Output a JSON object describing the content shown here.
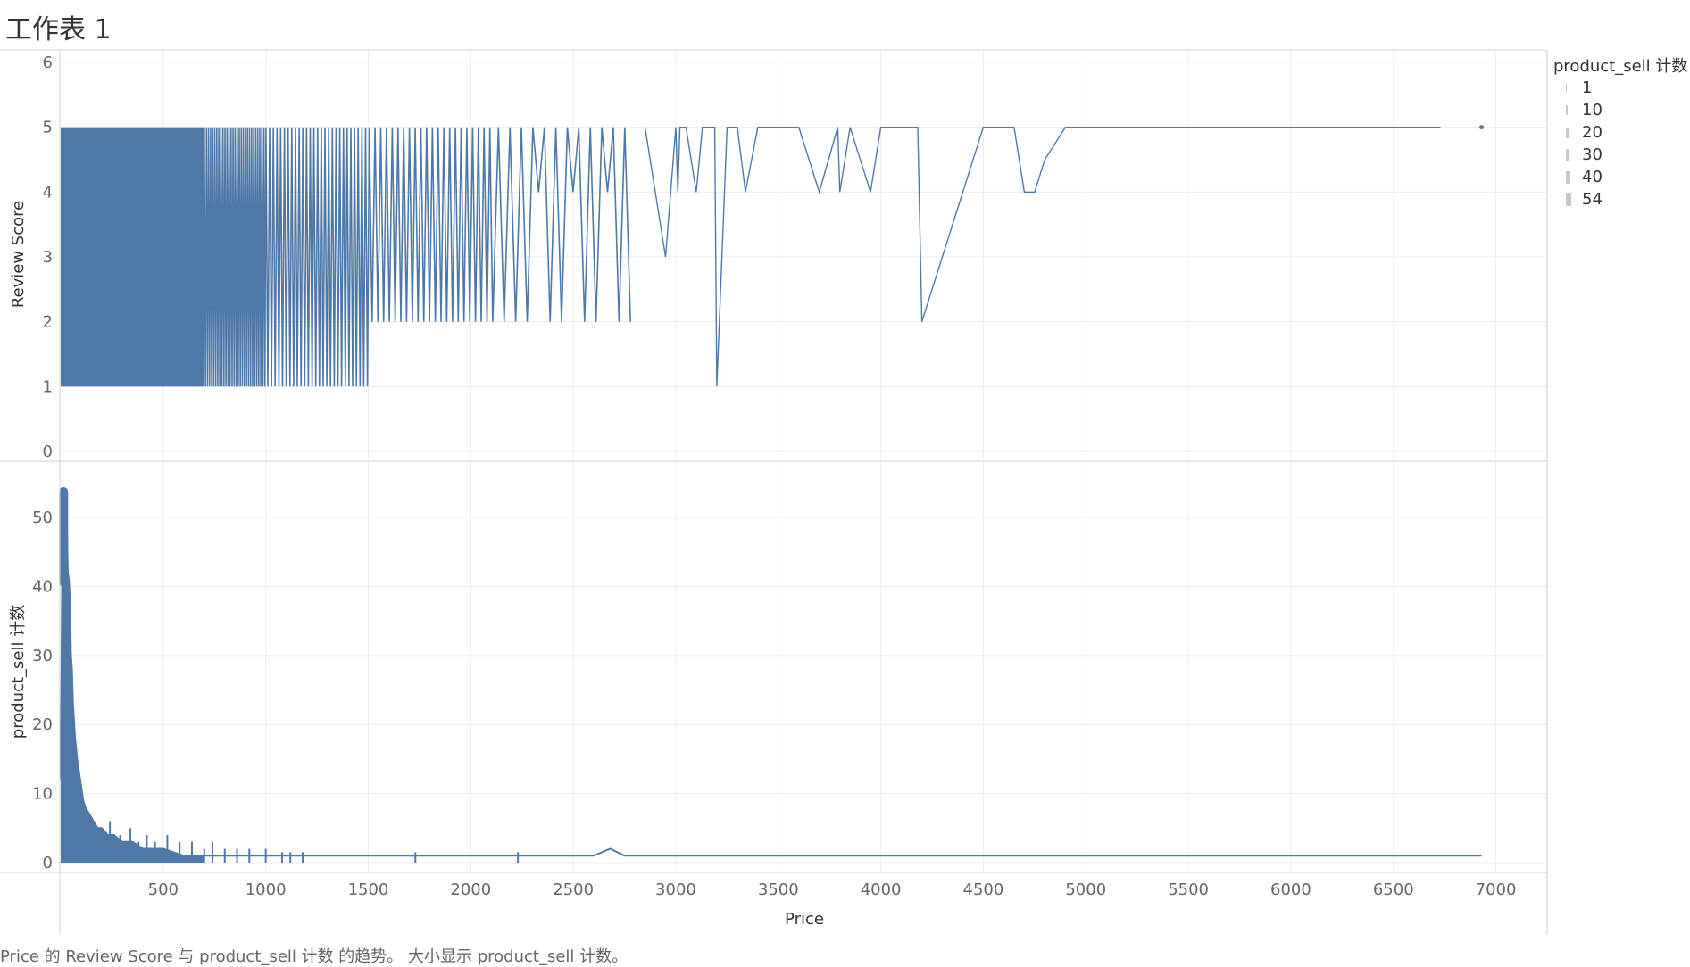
{
  "title": "工作表 1",
  "caption": "Price 的 Review Score 与 product_sell 计数 的趋势。 大小显示 product_sell 计数。",
  "colors": {
    "series": "#4e79a7",
    "grid": "#ececec",
    "axis": "#d0d0d0",
    "legend_swatch": "#c8c8c8"
  },
  "legend": {
    "title": "product_sell 计数",
    "items": [
      "1",
      "10",
      "20",
      "30",
      "40",
      "54"
    ]
  },
  "chart_data": [
    {
      "type": "line",
      "ylabel": "Review Score",
      "xlabel": "",
      "ylim": [
        0,
        6
      ],
      "yticks": [
        0,
        1,
        2,
        3,
        4,
        5,
        6
      ],
      "xlim": [
        0,
        7250
      ],
      "grid": true,
      "dense_region": {
        "x_range": [
          0,
          2800
        ],
        "y_range": [
          1,
          5
        ]
      },
      "series": [
        {
          "x": [
            2850,
            2950,
            3000,
            3010,
            3020,
            3050,
            3100,
            3130,
            3190,
            3200,
            3250,
            3300,
            3340,
            3400,
            3480,
            3600,
            3700,
            3790,
            3800,
            3850,
            3950,
            4000,
            4090,
            4120,
            4180,
            4200,
            4300,
            4400,
            4500,
            4590,
            4650,
            4700,
            4750,
            4800,
            4900,
            5000,
            5500,
            6000,
            6500,
            6730
          ],
          "y": [
            5,
            3,
            5,
            4,
            5,
            5,
            4,
            5,
            5,
            1,
            5,
            5,
            4,
            5,
            5,
            5,
            4,
            5,
            4,
            5,
            4,
            5,
            5,
            5,
            5,
            2,
            3,
            4,
            5,
            5,
            5,
            4,
            4,
            4.5,
            5,
            5,
            5,
            5,
            5,
            5
          ]
        }
      ],
      "points": [
        {
          "x": 6930,
          "y": 5
        }
      ]
    },
    {
      "type": "line",
      "ylabel": "product_sell 计数",
      "xlabel": "Price",
      "ylim": [
        0,
        58
      ],
      "yticks": [
        0,
        10,
        20,
        30,
        40,
        50
      ],
      "xlim": [
        0,
        7250
      ],
      "xticks": [
        500,
        1000,
        1500,
        2000,
        2500,
        3000,
        3500,
        4000,
        4500,
        5000,
        5500,
        6000,
        6500,
        7000
      ],
      "grid": true,
      "series": [
        {
          "x": [
            0,
            10,
            20,
            25,
            30,
            35,
            40,
            45,
            50,
            55,
            60,
            70,
            80,
            90,
            100,
            110,
            120,
            140,
            160,
            180,
            200,
            230,
            260,
            300,
            350,
            400,
            450,
            500,
            600,
            700,
            800,
            1000,
            1500,
            1730,
            2200,
            2600,
            2680,
            2750,
            3000,
            4000,
            5000,
            6000,
            6930
          ],
          "y": [
            12,
            54,
            53,
            51,
            49,
            42,
            41,
            38,
            30,
            28,
            23,
            18,
            15,
            13,
            11,
            9,
            8,
            7,
            6,
            5,
            5,
            4,
            4,
            3,
            3,
            2,
            2,
            2,
            1,
            1,
            1,
            1,
            1,
            1,
            1,
            1,
            2,
            1,
            1,
            1,
            1,
            1,
            1
          ]
        }
      ]
    }
  ]
}
